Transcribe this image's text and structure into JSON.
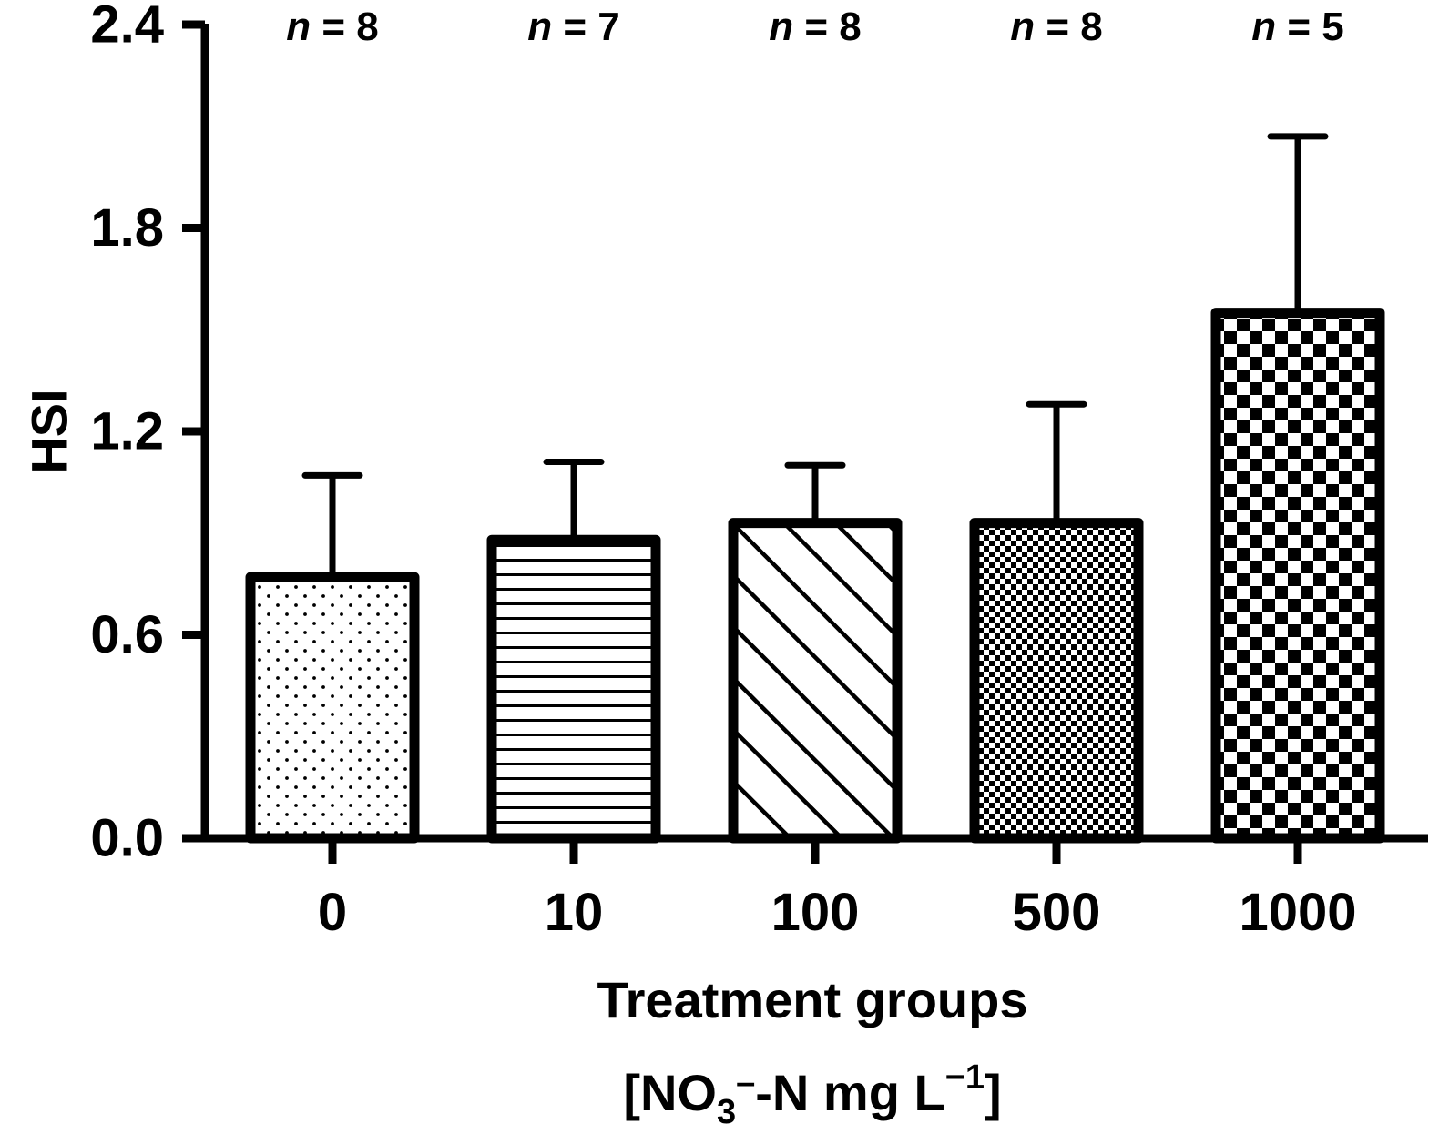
{
  "chart_data": {
    "type": "bar",
    "xlabel": "Treatment groups",
    "xunit": {
      "open": "[NO",
      "sub": "3",
      "sup_minus": "–",
      "mid": "-N mg L",
      "exp": "−1",
      "close": "]"
    },
    "ylabel": "HSI",
    "ylim": [
      0,
      2.4
    ],
    "yticks": [
      "0.0",
      "0.6",
      "1.2",
      "1.8",
      "2.4"
    ],
    "grid": false,
    "legend": "none",
    "categories": [
      "0",
      "10",
      "100",
      "500",
      "1000"
    ],
    "values": [
      0.77,
      0.88,
      0.93,
      0.93,
      1.55
    ],
    "error_upper": [
      1.07,
      1.11,
      1.1,
      1.28,
      2.07
    ],
    "n_prefix": "n",
    "n_values": [
      "= 8",
      "= 7",
      "= 8",
      "= 8",
      "= 5"
    ],
    "patterns": [
      "dots",
      "horizontal-lines",
      "diagonal-lines",
      "fine-checker",
      "coarse-checker"
    ],
    "colors": {
      "ink": "#000000",
      "background": "#ffffff"
    }
  }
}
